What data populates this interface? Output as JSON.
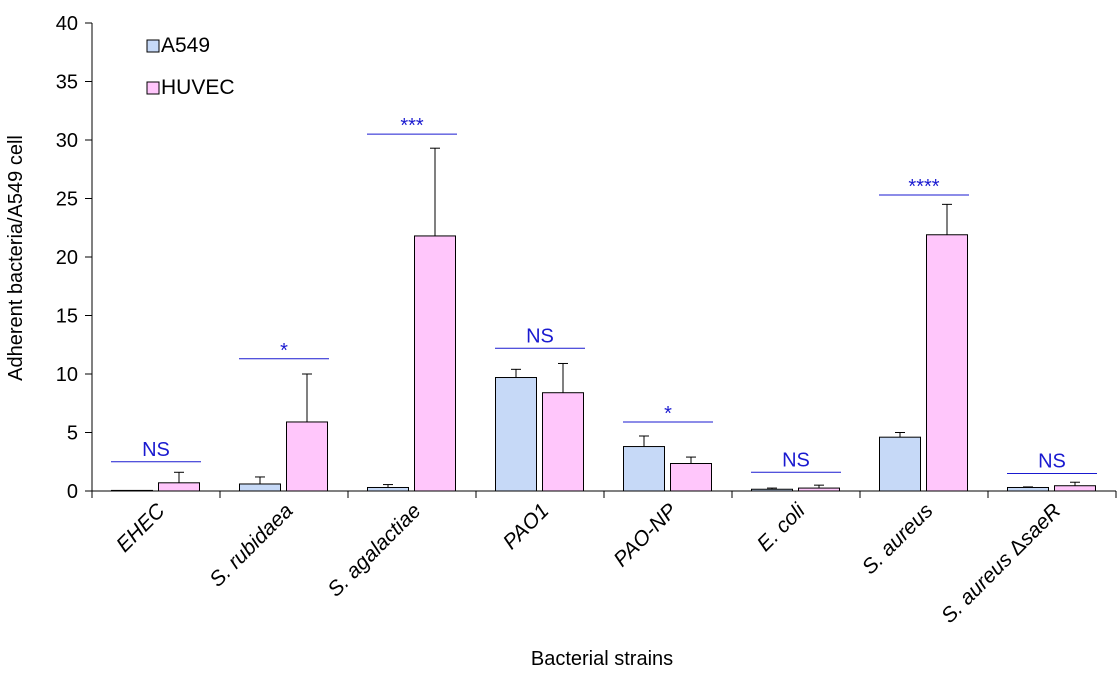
{
  "chart_data": {
    "type": "bar",
    "title": "",
    "xlabel": "Bacterial strains",
    "ylabel": "Adherent bacteria/A549 cell",
    "ylim": [
      0,
      40
    ],
    "yticks": [
      0,
      5,
      10,
      15,
      20,
      25,
      30,
      35,
      40
    ],
    "categories": [
      [
        {
          "t": "EHEC",
          "i": true
        }
      ],
      [
        {
          "t": "S. rubidaea",
          "i": true
        }
      ],
      [
        {
          "t": "S. agalactiae",
          "i": true
        }
      ],
      [
        {
          "t": "PAO1",
          "i": true
        }
      ],
      [
        {
          "t": "PAO-NP",
          "i": true
        }
      ],
      [
        {
          "t": "E. coli",
          "i": true
        }
      ],
      [
        {
          "t": "S. aureus",
          "i": true
        }
      ],
      [
        {
          "t": "S. aureus ",
          "i": true
        },
        {
          "t": "Δ",
          "i": false
        },
        {
          "t": "saeR",
          "i": true
        }
      ]
    ],
    "series": [
      {
        "name": "A549",
        "color": "#c6d9f7",
        "values": [
          0.05,
          0.6,
          0.3,
          9.7,
          3.8,
          0.15,
          4.6,
          0.3
        ],
        "errors": [
          0.0,
          0.6,
          0.25,
          0.7,
          0.9,
          0.1,
          0.4,
          0.05
        ]
      },
      {
        "name": "HUVEC",
        "color": "#ffc6fb",
        "values": [
          0.7,
          5.9,
          21.8,
          8.4,
          2.35,
          0.25,
          21.9,
          0.45
        ],
        "errors": [
          0.9,
          4.1,
          7.5,
          2.5,
          0.55,
          0.25,
          2.6,
          0.3
        ]
      }
    ],
    "significance": [
      {
        "label": "NS",
        "y": 2.5
      },
      {
        "label": "*",
        "y": 11.3
      },
      {
        "label": "***",
        "y": 30.5
      },
      {
        "label": "NS",
        "y": 12.2
      },
      {
        "label": "*",
        "y": 5.9
      },
      {
        "label": "NS",
        "y": 1.6
      },
      {
        "label": "****",
        "y": 25.3
      },
      {
        "label": "NS",
        "y": 1.5
      }
    ],
    "significance_color": "#1a1ad0",
    "legend_position": "top-left"
  }
}
